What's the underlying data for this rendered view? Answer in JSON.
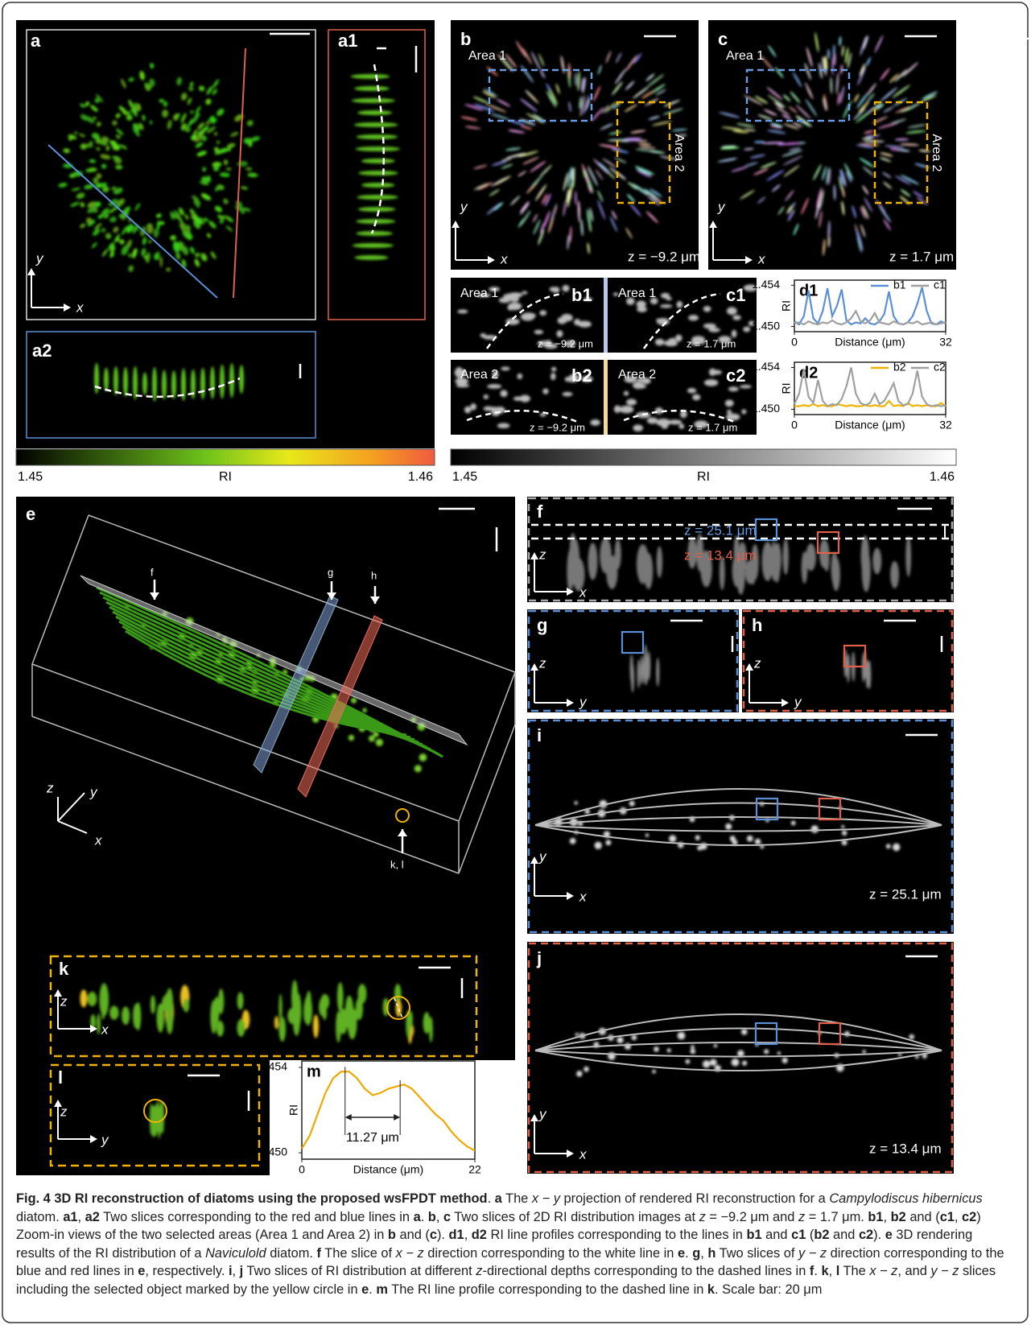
{
  "panels": {
    "a": {
      "label": "a",
      "axis_x": "x",
      "axis_y": "y"
    },
    "a1": {
      "label": "a1"
    },
    "a2": {
      "label": "a2"
    },
    "b": {
      "label": "b",
      "area_1": "Area 1",
      "area_2": "Area 2",
      "z": "z = −9.2 μm",
      "axis_x": "x",
      "axis_y": "y"
    },
    "c": {
      "label": "c",
      "area_1": "Area 1",
      "area_2": "Area 2",
      "z": "z = 1.7 μm",
      "axis_x": "x",
      "axis_y": "y"
    },
    "b1": {
      "label": "b1",
      "area": "Area 1",
      "z": "z = −9.2 μm"
    },
    "c1": {
      "label": "c1",
      "area": "Area 1",
      "z": "z = 1.7 μm"
    },
    "b2": {
      "label": "b2",
      "area": "Area 2",
      "z": "z = −9.2 μm"
    },
    "c2": {
      "label": "c2",
      "area": "Area 2",
      "z": "z = 1.7 μm"
    },
    "e": {
      "label": "e",
      "markers": [
        "f",
        "g",
        "h",
        "k, l"
      ],
      "axis_x": "x",
      "axis_y": "y",
      "axis_z": "z"
    },
    "f": {
      "label": "f",
      "depths": [
        "z = 25.1 μm",
        "z = 13.4 μm"
      ],
      "axis_x": "x",
      "axis_z": "z"
    },
    "g": {
      "label": "g",
      "axis_y": "y",
      "axis_z": "z"
    },
    "h": {
      "label": "h",
      "axis_y": "y",
      "axis_z": "z"
    },
    "i": {
      "label": "i",
      "z": "z = 25.1 μm",
      "axis_x": "x",
      "axis_y": "y"
    },
    "j": {
      "label": "j",
      "z": "z = 13.4 μm",
      "axis_x": "x",
      "axis_y": "y"
    },
    "k": {
      "label": "k",
      "axis_x": "x",
      "axis_z": "z"
    },
    "l": {
      "label": "l",
      "axis_y": "y",
      "axis_z": "z"
    }
  },
  "colorbars": [
    {
      "min": "1.45",
      "title": "RI",
      "max": "1.46"
    },
    {
      "min": "1.45",
      "title": "RI",
      "max": "1.46"
    }
  ],
  "plots": [
    {
      "label": "d1",
      "xlabel": "Distance (μm)",
      "ylabel": "RI",
      "x": [
        0,
        1,
        2,
        3,
        4,
        5,
        6,
        7,
        8,
        9,
        10,
        11,
        12,
        13,
        14,
        15,
        16,
        17,
        18,
        19,
        20,
        21,
        22,
        23,
        24,
        25,
        26,
        27,
        28,
        29,
        30,
        31,
        32
      ],
      "xlim": [
        0,
        32
      ],
      "ylim": [
        1.4495,
        1.4545
      ],
      "xticks": [
        0,
        32
      ],
      "yticks": [
        1.454,
        {
          "value": 1.45,
          "label": "1.450"
        }
      ],
      "series": [
        {
          "name": "b1",
          "color": "#5b8fd6",
          "values": [
            1.4505,
            1.4502,
            1.451,
            1.4535,
            1.4508,
            1.4503,
            1.4515,
            1.4537,
            1.451,
            1.452,
            1.4536,
            1.4506,
            1.4502,
            1.4504,
            1.4503,
            1.4508,
            1.4503,
            1.4502,
            1.4505,
            1.4512,
            1.4534,
            1.451,
            1.4503,
            1.4502,
            1.4504,
            1.451,
            1.4522,
            1.4538,
            1.4515,
            1.4503,
            1.4502,
            1.4505,
            1.4503
          ]
        },
        {
          "name": "c1",
          "color": "#a0a0a0",
          "values": [
            1.4503,
            1.4504,
            1.4502,
            1.4505,
            1.4503,
            1.4502,
            1.4504,
            1.4503,
            1.4506,
            1.4503,
            1.4502,
            1.4504,
            1.4508,
            1.4515,
            1.4505,
            1.4503,
            1.4506,
            1.4513,
            1.4504,
            1.4503,
            1.4502,
            1.4505,
            1.4503,
            1.4502,
            1.4504,
            1.4503,
            1.4505,
            1.4502,
            1.4503,
            1.4504,
            1.4502,
            1.4503,
            1.4504
          ]
        }
      ]
    },
    {
      "label": "d2",
      "xlabel": "Distance (μm)",
      "ylabel": "RI",
      "x": [
        0,
        1,
        2,
        3,
        4,
        5,
        6,
        7,
        8,
        9,
        10,
        11,
        12,
        13,
        14,
        15,
        16,
        17,
        18,
        19,
        20,
        21,
        22,
        23,
        24,
        25,
        26,
        27,
        28,
        29,
        30,
        31,
        32
      ],
      "xlim": [
        0,
        32
      ],
      "ylim": [
        1.4495,
        1.4545
      ],
      "xticks": [
        0,
        32
      ],
      "yticks": [
        1.454,
        {
          "value": 1.45,
          "label": "1.450"
        }
      ],
      "series": [
        {
          "name": "b2",
          "color": "#f0b400",
          "values": [
            1.4503,
            1.4503,
            1.4504,
            1.4503,
            1.4505,
            1.4503,
            1.4504,
            1.4503,
            1.4503,
            1.4505,
            1.4504,
            1.4503,
            1.4504,
            1.4503,
            1.4503,
            1.4504,
            1.4503,
            1.4504,
            1.4503,
            1.4503,
            1.4508,
            1.4503,
            1.4504,
            1.4503,
            1.4506,
            1.4503,
            1.4504,
            1.4503,
            1.4504,
            1.4503,
            1.4503,
            1.4506,
            1.4503
          ]
        },
        {
          "name": "c2",
          "color": "#a0a0a0",
          "values": [
            1.4505,
            1.4515,
            1.4538,
            1.4512,
            1.4506,
            1.4528,
            1.4508,
            1.4503,
            1.4505,
            1.4504,
            1.451,
            1.4522,
            1.454,
            1.4515,
            1.4506,
            1.4504,
            1.4506,
            1.4515,
            1.4505,
            1.4508,
            1.4516,
            1.4525,
            1.4508,
            1.4504,
            1.4505,
            1.4515,
            1.4537,
            1.4512,
            1.4505,
            1.4503,
            1.4504,
            1.4503,
            1.4504
          ]
        }
      ]
    },
    {
      "label": "m",
      "xlabel": "Distance (μm)",
      "ylabel": "RI",
      "x": [
        0,
        1,
        2,
        3,
        4,
        5,
        6,
        7,
        8,
        9,
        10,
        11,
        12,
        13,
        14,
        15,
        16,
        17,
        18,
        19,
        20,
        21,
        22
      ],
      "xlim": [
        0,
        22
      ],
      "ylim": [
        1.4497,
        1.4543
      ],
      "xticks": [
        0,
        22
      ],
      "yticks": [
        1.454,
        {
          "value": 1.45,
          "label": "1.450"
        }
      ],
      "color": "#f0a800",
      "values": [
        1.4502,
        1.4508,
        1.4518,
        1.4528,
        1.4535,
        1.4538,
        1.4538,
        1.4535,
        1.453,
        1.4527,
        1.4528,
        1.453,
        1.4531,
        1.4532,
        1.453,
        1.4526,
        1.4522,
        1.4518,
        1.4515,
        1.451,
        1.4506,
        1.4503,
        1.4501
      ],
      "annotation": "11.27 μm"
    }
  ],
  "caption": {
    "runs": [
      {
        "text": "Fig. 4 3D RI reconstruction of diatoms using the proposed wsFPDT method",
        "style": "b"
      },
      {
        "text": ". ",
        "style": ""
      },
      {
        "text": "a",
        "style": "b"
      },
      {
        "text": " The ",
        "style": ""
      },
      {
        "text": "x − y",
        "style": "i"
      },
      {
        "text": " projection of rendered RI reconstruction for a ",
        "style": ""
      },
      {
        "text": "Campylodiscus hibernicus",
        "style": "i"
      },
      {
        "text": " diatom. ",
        "style": ""
      },
      {
        "text": "a1",
        "style": "b"
      },
      {
        "text": ", ",
        "style": ""
      },
      {
        "text": "a2",
        "style": "b"
      },
      {
        "text": " Two slices corresponding to the red and blue lines in ",
        "style": ""
      },
      {
        "text": "a",
        "style": "b"
      },
      {
        "text": ". ",
        "style": ""
      },
      {
        "text": "b",
        "style": "b"
      },
      {
        "text": ", ",
        "style": ""
      },
      {
        "text": "c",
        "style": "b"
      },
      {
        "text": " Two slices of 2D RI distribution images at ",
        "style": ""
      },
      {
        "text": "z",
        "style": "i"
      },
      {
        "text": " = −9.2 μm and ",
        "style": ""
      },
      {
        "text": "z",
        "style": "i"
      },
      {
        "text": " = 1.7 μm. ",
        "style": ""
      },
      {
        "text": "b1",
        "style": "b"
      },
      {
        "text": ", ",
        "style": ""
      },
      {
        "text": "b2",
        "style": "b"
      },
      {
        "text": " and (",
        "style": ""
      },
      {
        "text": "c1",
        "style": "b"
      },
      {
        "text": ", ",
        "style": ""
      },
      {
        "text": "c2",
        "style": "b"
      },
      {
        "text": ") Zoom-in views of the two selected areas (Area 1 and Area 2) in ",
        "style": ""
      },
      {
        "text": "b",
        "style": "b"
      },
      {
        "text": " and (",
        "style": ""
      },
      {
        "text": "c",
        "style": "b"
      },
      {
        "text": "). ",
        "style": ""
      },
      {
        "text": "d1",
        "style": "b"
      },
      {
        "text": ", ",
        "style": ""
      },
      {
        "text": "d2",
        "style": "b"
      },
      {
        "text": " RI line profiles corresponding to the lines in ",
        "style": ""
      },
      {
        "text": "b1",
        "style": "b"
      },
      {
        "text": " and ",
        "style": ""
      },
      {
        "text": "c1",
        "style": "b"
      },
      {
        "text": " (",
        "style": ""
      },
      {
        "text": "b2",
        "style": "b"
      },
      {
        "text": " and ",
        "style": ""
      },
      {
        "text": "c2",
        "style": "b"
      },
      {
        "text": "). ",
        "style": ""
      },
      {
        "text": "e",
        "style": "b"
      },
      {
        "text": " 3D rendering results of the RI distribution of a ",
        "style": ""
      },
      {
        "text": "Naviculold",
        "style": "i"
      },
      {
        "text": " diatom. ",
        "style": ""
      },
      {
        "text": "f",
        "style": "b"
      },
      {
        "text": " The slice of ",
        "style": ""
      },
      {
        "text": "x − z",
        "style": "i"
      },
      {
        "text": " direction corresponding to the white line in ",
        "style": ""
      },
      {
        "text": "e",
        "style": "b"
      },
      {
        "text": ". ",
        "style": ""
      },
      {
        "text": "g",
        "style": "b"
      },
      {
        "text": ", ",
        "style": ""
      },
      {
        "text": "h",
        "style": "b"
      },
      {
        "text": " Two slices of ",
        "style": ""
      },
      {
        "text": "y − z",
        "style": "i"
      },
      {
        "text": " direction corresponding to the blue and red lines in ",
        "style": ""
      },
      {
        "text": "e",
        "style": "b"
      },
      {
        "text": ", respectively. ",
        "style": ""
      },
      {
        "text": "i",
        "style": "b"
      },
      {
        "text": ", ",
        "style": ""
      },
      {
        "text": "j",
        "style": "b"
      },
      {
        "text": " Two slices of RI distribution at different ",
        "style": ""
      },
      {
        "text": "z",
        "style": "i"
      },
      {
        "text": "-directional depths corresponding to the dashed lines in ",
        "style": ""
      },
      {
        "text": "f",
        "style": "b"
      },
      {
        "text": ". ",
        "style": ""
      },
      {
        "text": "k",
        "style": "b"
      },
      {
        "text": ", ",
        "style": ""
      },
      {
        "text": "l",
        "style": "b"
      },
      {
        "text": " The ",
        "style": ""
      },
      {
        "text": "x − z",
        "style": "i"
      },
      {
        "text": ", and ",
        "style": ""
      },
      {
        "text": "y − z",
        "style": "i"
      },
      {
        "text": " slices including the selected object marked by the yellow circle in ",
        "style": ""
      },
      {
        "text": "e",
        "style": "b"
      },
      {
        "text": ". ",
        "style": ""
      },
      {
        "text": "m",
        "style": "b"
      },
      {
        "text": " The RI line profile corresponding to the dashed line in ",
        "style": ""
      },
      {
        "text": "k",
        "style": "b"
      },
      {
        "text": ". Scale bar: 20 μm",
        "style": ""
      }
    ]
  }
}
